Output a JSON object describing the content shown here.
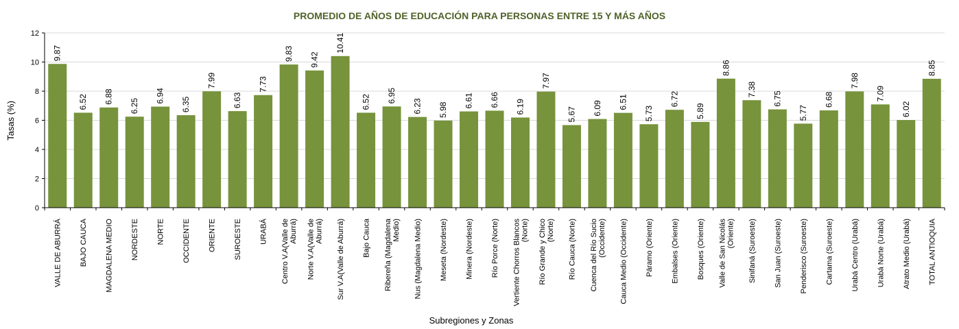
{
  "chart_data": {
    "type": "bar",
    "title": "PROMEDIO DE AÑOS DE EDUCACIÓN PARA PERSONAS ENTRE 15 Y MÁS AÑOS",
    "xlabel": "Subregiones y Zonas",
    "ylabel": "Tasas (%)",
    "ylim": [
      0,
      12
    ],
    "yticks": [
      0,
      2,
      4,
      6,
      8,
      10,
      12
    ],
    "grid": true,
    "bar_color": "#77933c",
    "title_color": "#4f6228",
    "categories": [
      [
        "VALLE DE ABURRÁ"
      ],
      [
        "BAJO CAUCA"
      ],
      [
        "MAGDALENA MEDIO"
      ],
      [
        "NORDESTE"
      ],
      [
        "NORTE"
      ],
      [
        "OCCIDENTE"
      ],
      [
        "ORIENTE"
      ],
      [
        "SUROESTE"
      ],
      [
        "URABÁ"
      ],
      [
        "Centro V.A(Valle de",
        "Aburrá)"
      ],
      [
        "Norte V.A(Valle de",
        "Aburrá)"
      ],
      [
        "Sur V.A(Valle de Aburrá)"
      ],
      [
        "Bajo Cauca"
      ],
      [
        "Ribereña  (Magdalena",
        "Medio)"
      ],
      [
        "Nus  (Magdalena Medio)"
      ],
      [
        "Meseta  (Nordeste)"
      ],
      [
        "Minera  (Nordeste)"
      ],
      [
        "Río Porce   (Norte)"
      ],
      [
        "Vertiente Chorros Blancos",
        "(Norte)"
      ],
      [
        "Río Grande y Chico",
        "(Norte)"
      ],
      [
        "Río Cauca  (Norte)"
      ],
      [
        "Cuenca del Río Sucio",
        "(Occidente)"
      ],
      [
        "Cauca Medio  (Occidente)"
      ],
      [
        "Páramo   (Oriente)"
      ],
      [
        "Embalses  (Oriente)"
      ],
      [
        "Bosques  (Oriente)"
      ],
      [
        "Valle de San Nicolás",
        "(Oriente)"
      ],
      [
        "Sinifaná  (Suroeste)"
      ],
      [
        "San Juan  (Suroeste)"
      ],
      [
        "Penderisco  (Suroeste)"
      ],
      [
        "Cartama  (Suroeste)"
      ],
      [
        "Urabá Centro  (Urabá)"
      ],
      [
        "Urabá Norte  (Urabá)"
      ],
      [
        "Atrato Medio  (Urabá)"
      ],
      [
        "TOTAL ANTIOQUIA"
      ]
    ],
    "values": [
      9.87,
      6.52,
      6.88,
      6.25,
      6.94,
      6.35,
      7.99,
      6.63,
      7.73,
      9.83,
      9.42,
      10.41,
      6.52,
      6.95,
      6.23,
      5.98,
      6.61,
      6.66,
      6.19,
      7.97,
      5.67,
      6.09,
      6.51,
      5.73,
      6.72,
      5.89,
      8.86,
      7.38,
      6.75,
      5.77,
      6.68,
      7.98,
      7.09,
      6.02,
      8.85
    ],
    "value_labels": [
      "9.87",
      "6.52",
      "6.88",
      "6.25",
      "6.94",
      "6.35",
      "7.99",
      "6.63",
      "7.73",
      "9.83",
      "9.42",
      "10.41",
      "6.52",
      "6.95",
      "6.23",
      "5.98",
      "6.61",
      "6.66",
      "6.19",
      "7.97",
      "5.67",
      "6.09",
      "6.51",
      "5.73",
      "6.72",
      "5.89",
      "8.86",
      "7.38",
      "6.75",
      "5.77",
      "6.68",
      "7.98",
      "7.09",
      "6.02",
      "8.85"
    ]
  }
}
